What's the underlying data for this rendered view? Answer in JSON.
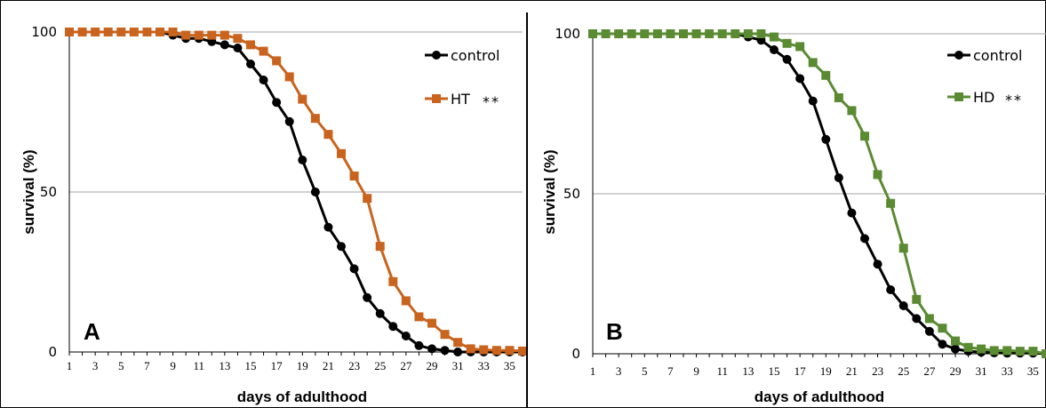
{
  "chart_data": [
    {
      "type": "line",
      "panel_label": "A",
      "xlabel": "days of adulthood",
      "ylabel": "survival (%)",
      "xlim": [
        1,
        36
      ],
      "ylim": [
        0,
        100
      ],
      "x_tick_labels": [
        "1",
        "3",
        "5",
        "7",
        "9",
        "11",
        "13",
        "15",
        "17",
        "19",
        "21",
        "23",
        "25",
        "27",
        "29",
        "31",
        "33",
        "35"
      ],
      "y_tick_labels": [
        "0",
        "50",
        "100"
      ],
      "grid": "horizontal",
      "legend_position": "top-right",
      "x": [
        1,
        2,
        3,
        4,
        5,
        6,
        7,
        8,
        9,
        10,
        11,
        12,
        13,
        14,
        15,
        16,
        17,
        18,
        19,
        20,
        21,
        22,
        23,
        24,
        25,
        26,
        27,
        28,
        29,
        30,
        31,
        32,
        33,
        34,
        35,
        36
      ],
      "series": [
        {
          "name": "control",
          "marker": "circle",
          "color": "#000000",
          "values": [
            100,
            100,
            100,
            100,
            100,
            100,
            100,
            100,
            99,
            98,
            98,
            97,
            96,
            95,
            90,
            85,
            78,
            72,
            60,
            50,
            39,
            33,
            26,
            17,
            12,
            8,
            5,
            2,
            1,
            0.5,
            0,
            0,
            0,
            0,
            0,
            0
          ]
        },
        {
          "name": "HT",
          "marker": "square",
          "color": "#C8641E",
          "significance": "**",
          "values": [
            100,
            100,
            100,
            100,
            100,
            100,
            100,
            100,
            100,
            99,
            99,
            99,
            99,
            98,
            96,
            94,
            91,
            86,
            79,
            73,
            68,
            62,
            55,
            48,
            33,
            22,
            16,
            11,
            9,
            5.5,
            3,
            1,
            0.7,
            0.5,
            0.5,
            0.3
          ]
        }
      ]
    },
    {
      "type": "line",
      "panel_label": "B",
      "xlabel": "days of adulthood",
      "ylabel": "survival (%)",
      "xlim": [
        1,
        36
      ],
      "ylim": [
        0,
        100
      ],
      "x_tick_labels": [
        "1",
        "3",
        "5",
        "7",
        "9",
        "11",
        "13",
        "15",
        "17",
        "19",
        "21",
        "23",
        "25",
        "27",
        "29",
        "31",
        "33",
        "35"
      ],
      "y_tick_labels": [
        "0",
        "50",
        "100"
      ],
      "grid": "horizontal",
      "legend_position": "top-right",
      "x": [
        1,
        2,
        3,
        4,
        5,
        6,
        7,
        8,
        9,
        10,
        11,
        12,
        13,
        14,
        15,
        16,
        17,
        18,
        19,
        20,
        21,
        22,
        23,
        24,
        25,
        26,
        27,
        28,
        29,
        30,
        31,
        32,
        33,
        34,
        35,
        36
      ],
      "series": [
        {
          "name": "control",
          "marker": "circle",
          "color": "#000000",
          "values": [
            100,
            100,
            100,
            100,
            100,
            100,
            100,
            100,
            100,
            100,
            100,
            100,
            99,
            98,
            95,
            92,
            86,
            79,
            67,
            55,
            44,
            36,
            28,
            20,
            15,
            11,
            7,
            3,
            1.5,
            0.8,
            0.5,
            0.3,
            0.2,
            0.2,
            0.2,
            0
          ]
        },
        {
          "name": "HD",
          "marker": "square",
          "color": "#5A8A32",
          "significance": "**",
          "values": [
            100,
            100,
            100,
            100,
            100,
            100,
            100,
            100,
            100,
            100,
            100,
            100,
            100,
            100,
            99,
            97,
            96,
            91,
            87,
            80,
            76,
            68,
            56,
            47,
            33,
            17,
            11,
            8,
            4,
            2,
            1.5,
            1,
            1,
            0.8,
            0.8,
            0
          ]
        }
      ]
    }
  ]
}
